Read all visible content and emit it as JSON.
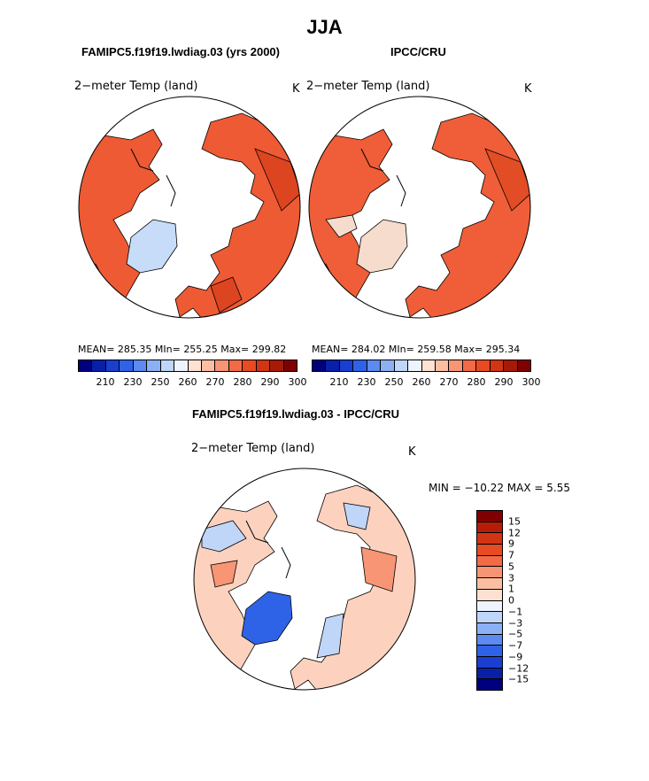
{
  "title": "JJA",
  "colors": {
    "scale": [
      "#00007f",
      "#0a1fa8",
      "#1a3fd0",
      "#2e63e8",
      "#5c8af0",
      "#8cb0f4",
      "#bfd6f8",
      "#eef4fd",
      "#fde2d3",
      "#fbbea2",
      "#f89575",
      "#f26a46",
      "#e84a22",
      "#d23514",
      "#a81a08",
      "#7f0000"
    ],
    "diff_scale": [
      "#7f0000",
      "#b81c08",
      "#d23514",
      "#e84a22",
      "#f26a46",
      "#f79473",
      "#fbbea2",
      "#fde2d3",
      "#eef4fd",
      "#bfd6f8",
      "#8cb0f4",
      "#5c8af0",
      "#2e63e8",
      "#1a3fd0",
      "#0a1fa8",
      "#00007f"
    ]
  },
  "panels": [
    {
      "title": "FAMIPC5.f19f19.lwdiag.03 (yrs 2000)",
      "field": "2−meter Temp (land)",
      "units": "K",
      "stats": "MEAN= 285.35   MIn= 255.25   Max= 299.82",
      "colorbar_ticks": [
        "210",
        "230",
        "250",
        "260",
        "270",
        "280",
        "290",
        "300"
      ],
      "map": {
        "land": "#ee5a34",
        "land_dark": "#dd4420",
        "ice": "#c7dcf8"
      }
    },
    {
      "title": "IPCC/CRU",
      "field": "2−meter Temp (land)",
      "units": "K",
      "stats": "MEAN= 284.02   MIn= 259.58   Max= 295.34",
      "colorbar_ticks": [
        "210",
        "230",
        "250",
        "260",
        "270",
        "280",
        "290",
        "300"
      ],
      "map": {
        "land": "#ef5e38",
        "land_dark": "#e24d26",
        "ice": "#f6dccd"
      }
    }
  ],
  "difference": {
    "title": "FAMIPC5.f19f19.lwdiag.03 - IPCC/CRU",
    "field": "2−meter Temp (land)",
    "units": "K",
    "minmax": "MIN = −10.22  MAX =    5.55",
    "colorbar_ticks": [
      "15",
      "12",
      "9",
      "7",
      "5",
      "3",
      "1",
      "0",
      "−1",
      "−3",
      "−5",
      "−7",
      "−9",
      "−12",
      "−15"
    ],
    "map": {
      "land": "#fcd2bf",
      "warm": "#f89575",
      "cool": "#bfd6f8",
      "ice": "#2e63e8"
    }
  }
}
